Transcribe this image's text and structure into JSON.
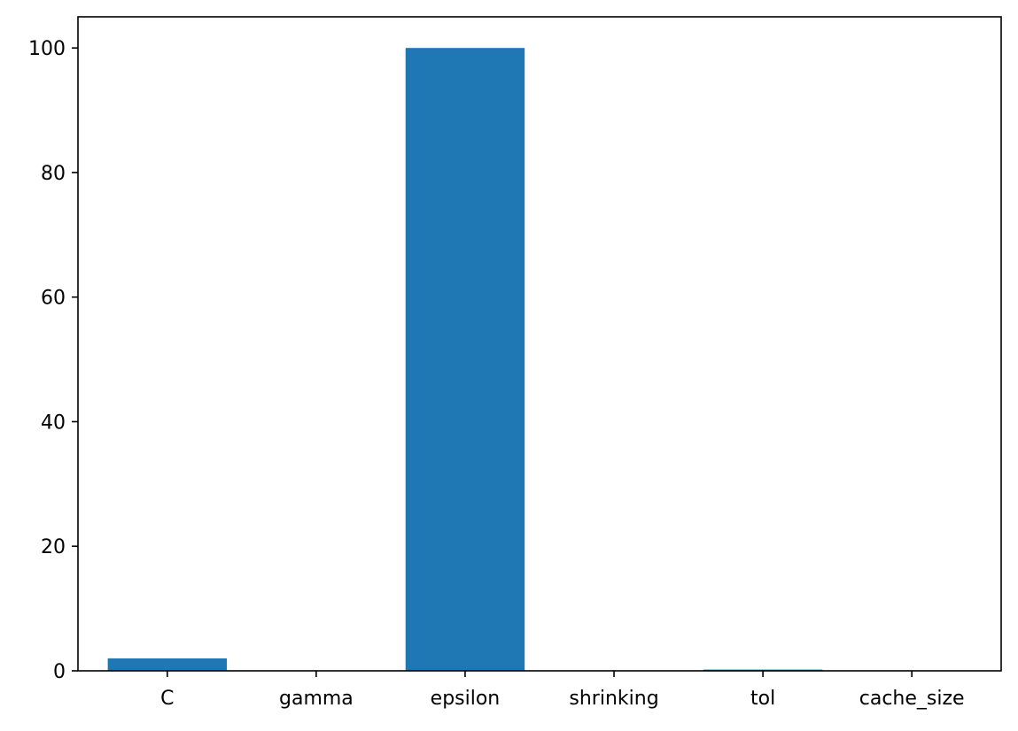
{
  "chart_data": {
    "type": "bar",
    "title": "",
    "xlabel": "",
    "ylabel": "",
    "categories": [
      "C",
      "gamma",
      "epsilon",
      "shrinking",
      "tol",
      "cache_size"
    ],
    "values": [
      2.0,
      0.0,
      100.0,
      0.0,
      0.2,
      0.0
    ],
    "ylim": [
      0,
      105
    ],
    "yticks": [
      0,
      20,
      40,
      60,
      80,
      100
    ],
    "ytick_labels": [
      "0",
      "20",
      "40",
      "60",
      "80",
      "100"
    ],
    "grid": false,
    "legend": "none",
    "bar_color": "#1f77b4"
  }
}
